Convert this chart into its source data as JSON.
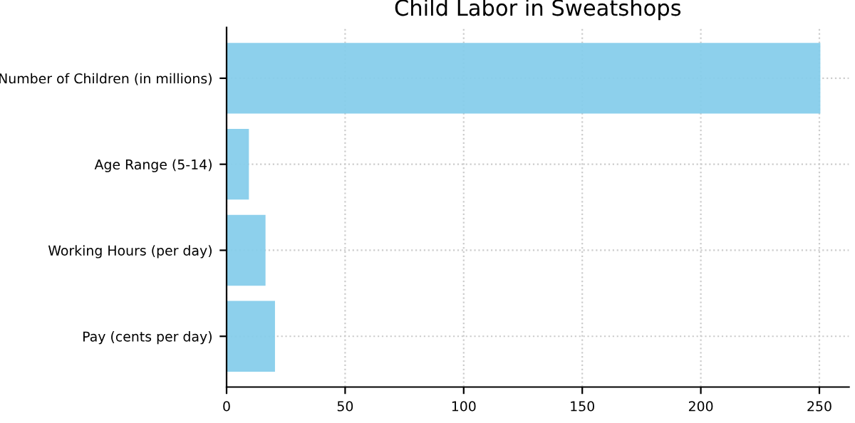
{
  "chart_data": {
    "type": "bar",
    "orientation": "horizontal",
    "title": "Child Labor in Sweatshops",
    "categories": [
      "Number of Children (in millions)",
      "Age Range (5-14)",
      "Working Hours (per day)",
      "Pay (cents per day)"
    ],
    "values": [
      250,
      9,
      16,
      20
    ],
    "color": "#87ceeb",
    "xlim": [
      0,
      262.5
    ],
    "xticks": [
      0,
      50,
      100,
      150,
      200,
      250
    ],
    "grid": true
  }
}
